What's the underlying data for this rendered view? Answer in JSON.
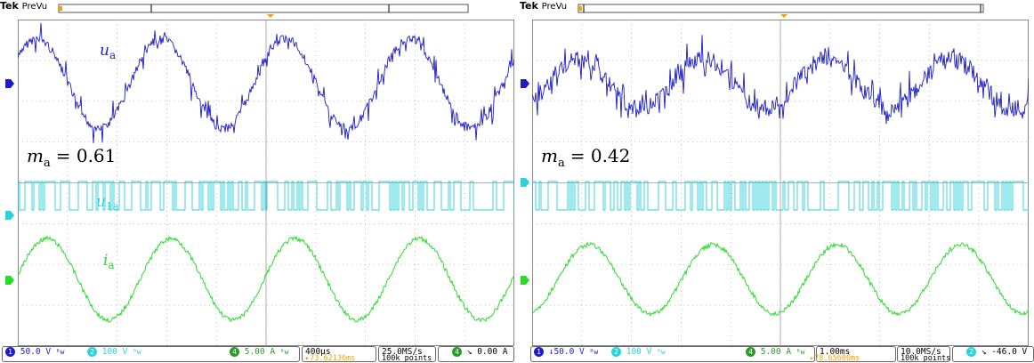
{
  "panels": [
    {
      "brand": "Tek",
      "mode": "PreVu",
      "signal_labels": {
        "u": "u",
        "u_sub": "a",
        "u1": "u",
        "u1_sub": "1a",
        "i": "i",
        "i_sub": "a"
      },
      "mod_index": {
        "symbol": "m",
        "sub": "a",
        "eq": "= 0.61"
      },
      "status": {
        "ch1": "50.0 V",
        "ch2": "100 V",
        "ch4": "5.00 A",
        "timebase": "400µs",
        "delay": "▸73.62136ms",
        "rate": "25.0MS/s",
        "points": "100k points",
        "trig_src": "4",
        "trig_level": "0.00 A"
      }
    },
    {
      "brand": "Tek",
      "mode": "PreVu",
      "signal_labels": {},
      "mod_index": {
        "symbol": "m",
        "sub": "a",
        "eq": "= 0.42"
      },
      "status": {
        "ch1": "↓50.0 V",
        "ch2": "100 V",
        "ch4": "5.00 A",
        "timebase": "1.00ms",
        "delay": "▸78.65600ms",
        "rate": "10.0MS/s",
        "points": "100k points",
        "trig_src": "2",
        "trig_level": "-46.0 V"
      }
    }
  ],
  "colors": {
    "ch1": "#1c1cc8",
    "ch2": "#2ad2dc",
    "ch4": "#2adc2a",
    "grid": "#b4b4b4",
    "orange": "#f5a000"
  },
  "chart_data": [
    {
      "type": "line",
      "series": [
        {
          "channel": 1,
          "waveform": "multilevel PWM voltage, fundamental sine",
          "cycles_visible": 4,
          "amplitude_divs": 1.1
        },
        {
          "channel": 2,
          "waveform": "two-level switching pulses",
          "cycles_visible": 4
        },
        {
          "channel": 4,
          "waveform": "sinusoidal current with ripple",
          "cycles_visible": 4,
          "amplitude_divs": 1.0
        }
      ]
    },
    {
      "type": "line",
      "series": [
        {
          "channel": 1,
          "waveform": "multilevel PWM voltage, fundamental sine",
          "cycles_visible": 4,
          "amplitude_divs": 0.6
        },
        {
          "channel": 2,
          "waveform": "two-level switching pulses",
          "cycles_visible": 4
        },
        {
          "channel": 4,
          "waveform": "sinusoidal current with ripple",
          "cycles_visible": 4,
          "amplitude_divs": 0.85
        }
      ]
    }
  ]
}
